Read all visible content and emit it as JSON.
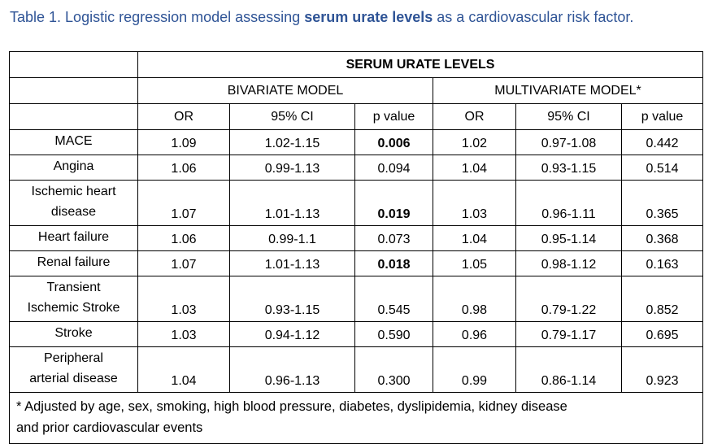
{
  "title": {
    "prefix": "Table 1. Logistic regression model assessing ",
    "bold_text": "serum urate levels",
    "suffix": " as a cardiovascular risk factor."
  },
  "colors": {
    "title_blue": "#2F5496",
    "border": "#000000",
    "background": "#ffffff"
  },
  "table": {
    "group_header": "SERUM URATE LEVELS",
    "model_headers": {
      "bivariate": "BIVARIATE MODEL",
      "multivariate": "MULTIVARIATE MODEL*"
    },
    "stat_headers": [
      "OR",
      "95% CI",
      "p value",
      "OR",
      "95% CI",
      "p value"
    ],
    "rows": [
      {
        "label": "MACE",
        "multiline": false,
        "cells": [
          {
            "text": "1.09",
            "bold": false
          },
          {
            "text": "1.02-1.15",
            "bold": false
          },
          {
            "text": "0.006",
            "bold": true
          },
          {
            "text": "1.02",
            "bold": false
          },
          {
            "text": "0.97-1.08",
            "bold": false
          },
          {
            "text": "0.442",
            "bold": false
          }
        ]
      },
      {
        "label": "Angina",
        "multiline": false,
        "cells": [
          {
            "text": "1.06",
            "bold": false
          },
          {
            "text": "0.99-1.13",
            "bold": false
          },
          {
            "text": "0.094",
            "bold": false
          },
          {
            "text": "1.04",
            "bold": false
          },
          {
            "text": "0.93-1.15",
            "bold": false
          },
          {
            "text": "0.514",
            "bold": false
          }
        ]
      },
      {
        "label": "Ischemic heart\ndisease",
        "multiline": true,
        "cells": [
          {
            "text": "1.07",
            "bold": false
          },
          {
            "text": "1.01-1.13",
            "bold": false
          },
          {
            "text": "0.019",
            "bold": true
          },
          {
            "text": "1.03",
            "bold": false
          },
          {
            "text": "0.96-1.11",
            "bold": false
          },
          {
            "text": "0.365",
            "bold": false
          }
        ]
      },
      {
        "label": "Heart failure",
        "multiline": false,
        "cells": [
          {
            "text": "1.06",
            "bold": false
          },
          {
            "text": "0.99-1.1",
            "bold": false
          },
          {
            "text": "0.073",
            "bold": false
          },
          {
            "text": "1.04",
            "bold": false
          },
          {
            "text": "0.95-1.14",
            "bold": false
          },
          {
            "text": "0.368",
            "bold": false
          }
        ]
      },
      {
        "label": "Renal failure",
        "multiline": false,
        "cells": [
          {
            "text": "1.07",
            "bold": false
          },
          {
            "text": "1.01-1.13",
            "bold": false
          },
          {
            "text": "0.018",
            "bold": true
          },
          {
            "text": "1.05",
            "bold": false
          },
          {
            "text": "0.98-1.12",
            "bold": false
          },
          {
            "text": "0.163",
            "bold": false
          }
        ]
      },
      {
        "label": "Transient\nIschemic Stroke",
        "multiline": true,
        "cells": [
          {
            "text": "1.03",
            "bold": false
          },
          {
            "text": "0.93-1.15",
            "bold": false
          },
          {
            "text": "0.545",
            "bold": false
          },
          {
            "text": "0.98",
            "bold": false
          },
          {
            "text": "0.79-1.22",
            "bold": false
          },
          {
            "text": "0.852",
            "bold": false
          }
        ]
      },
      {
        "label": "Stroke",
        "multiline": false,
        "cells": [
          {
            "text": "1.03",
            "bold": false
          },
          {
            "text": "0.94-1.12",
            "bold": false
          },
          {
            "text": "0.590",
            "bold": false
          },
          {
            "text": "0.96",
            "bold": false
          },
          {
            "text": "0.79-1.17",
            "bold": false
          },
          {
            "text": "0.695",
            "bold": false
          }
        ]
      },
      {
        "label": "Peripheral\narterial disease",
        "multiline": true,
        "cells": [
          {
            "text": "1.04",
            "bold": false
          },
          {
            "text": "0.96-1.13",
            "bold": false
          },
          {
            "text": "0.300",
            "bold": false
          },
          {
            "text": "0.99",
            "bold": false
          },
          {
            "text": "0.86-1.14",
            "bold": false
          },
          {
            "text": "0.923",
            "bold": false
          }
        ]
      }
    ],
    "footnote": "* Adjusted by age, sex, smoking, high blood pressure, diabetes, dyslipidemia, kidney disease\nand prior cardiovascular events"
  }
}
